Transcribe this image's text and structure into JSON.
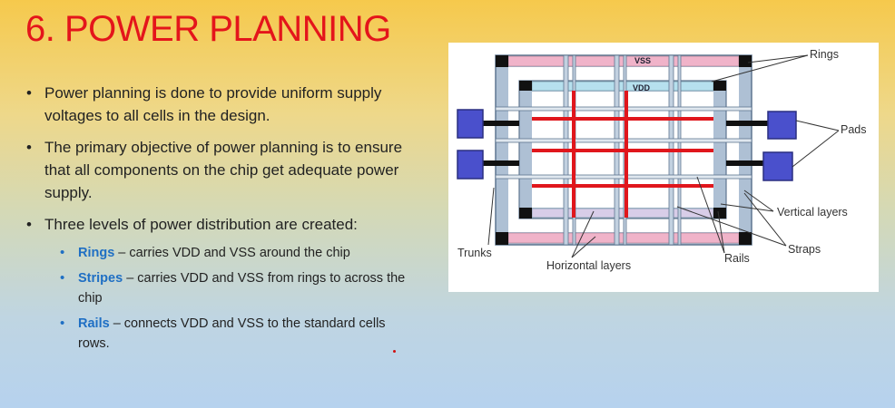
{
  "slide": {
    "title": "6. POWER PLANNING",
    "bullets": [
      "Power planning is done to provide uniform supply voltages to all cells in the design.",
      "The primary objective of power planning is to ensure that all components on the chip get adequate power supply.",
      "Three levels of power distribution are created:"
    ],
    "sub_bullets": [
      {
        "keyword": "Rings",
        "text": " – carries VDD and VSS around the chip"
      },
      {
        "keyword": "Stripes",
        "text": " – carries VDD and VSS from rings to across the chip"
      },
      {
        "keyword": "Rails",
        "text": " – connects VDD and VSS to the standard cells rows."
      }
    ]
  },
  "diagram": {
    "labels": {
      "rings": "Rings",
      "pads": "Pads",
      "vertical_layers": "Vertical layers",
      "straps": "Straps",
      "rails": "Rails",
      "trunks": "Trunks",
      "horizontal_layers": "Horizontal layers",
      "vss": "VSS",
      "vdd": "VDD"
    },
    "colors": {
      "ring_frame": "#7d93ab",
      "vss_ring": "#f0b3c9",
      "vdd_ring": "#b6e0ee",
      "pad": "#4a50cc",
      "rail_red": "#e0161c",
      "corner": "#111111"
    }
  }
}
